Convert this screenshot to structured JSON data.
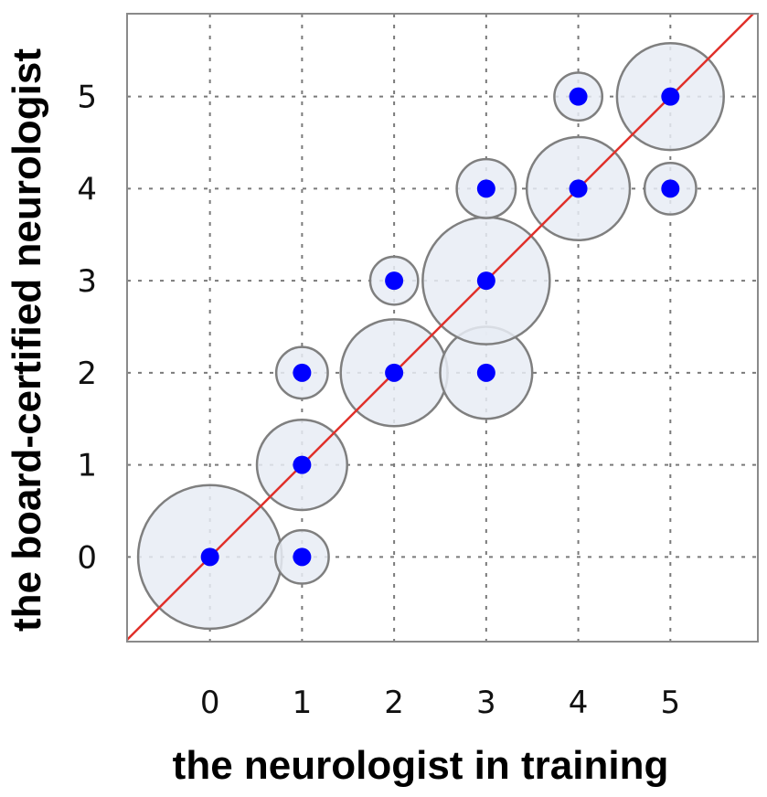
{
  "chart_data": {
    "type": "scatter",
    "title": "",
    "xlabel": "the neurologist in training",
    "ylabel": "the board-certified neurologist",
    "x_ticks": [
      "0",
      "1",
      "2",
      "3",
      "4",
      "5"
    ],
    "y_ticks": [
      "0",
      "1",
      "2",
      "3",
      "4",
      "5"
    ],
    "xlim": [
      -0.9,
      5.95
    ],
    "ylim": [
      -0.92,
      5.9
    ],
    "grid": true,
    "reference_line": "y = x",
    "colors": {
      "point": "#0000ff",
      "bubble_fill": "#e8ecf4",
      "bubble_stroke": "#7f7f7f",
      "reference_line": "#e0302a"
    },
    "points": [
      {
        "x": 0,
        "y": 0,
        "bubble": 0.78
      },
      {
        "x": 1,
        "y": 0,
        "bubble": 0.29
      },
      {
        "x": 1,
        "y": 1,
        "bubble": 0.49
      },
      {
        "x": 1,
        "y": 2,
        "bubble": 0.28
      },
      {
        "x": 2,
        "y": 2,
        "bubble": 0.58
      },
      {
        "x": 2,
        "y": 3,
        "bubble": 0.26
      },
      {
        "x": 3,
        "y": 2,
        "bubble": 0.5
      },
      {
        "x": 3,
        "y": 3,
        "bubble": 0.69
      },
      {
        "x": 3,
        "y": 4,
        "bubble": 0.32
      },
      {
        "x": 4,
        "y": 4,
        "bubble": 0.56
      },
      {
        "x": 4,
        "y": 5,
        "bubble": 0.26
      },
      {
        "x": 5,
        "y": 4,
        "bubble": 0.28
      },
      {
        "x": 5,
        "y": 5,
        "bubble": 0.58
      }
    ]
  }
}
